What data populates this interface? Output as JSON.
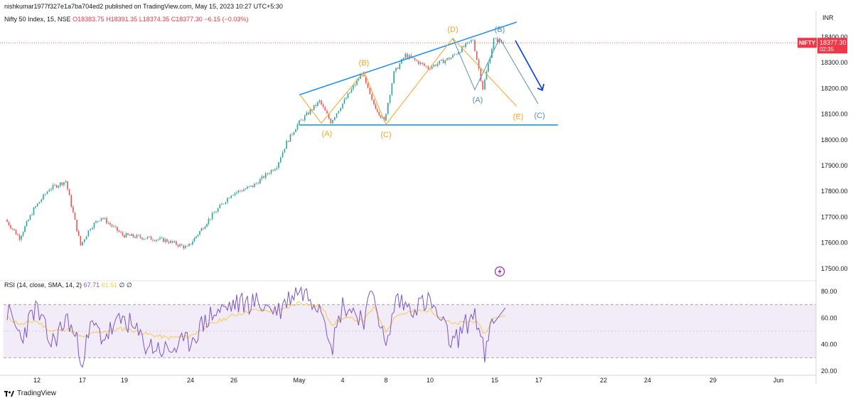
{
  "header": {
    "publish_line": "nishkumar1977f327e1a7ba704ed2 published on TradingView.com, May 15, 2023 10:27 UTC+5:30",
    "symbol": "Nifty 50 Index, 15, NSE",
    "open": "O18383.75",
    "high": "H18391.35",
    "low": "L18374.35",
    "close": "C18377.30",
    "change": "−6.15 (−0.03%)"
  },
  "price_badge": {
    "symbol": "NIFTY",
    "price": "18377.30",
    "countdown": "02:35"
  },
  "rsi_legend": {
    "label": "RSI (14, close, SMA, 14, 2)",
    "rsi_value": "67.71",
    "sma_value": "61.51",
    "extra": "∅ ∅"
  },
  "footer": {
    "brand": "TradingView"
  },
  "colors": {
    "up": "#26a69a",
    "down": "#ef5350",
    "trend_line": "#2196f3",
    "wave_orange": "#f5a623",
    "wave_blue": "#5a8fb8",
    "rsi_line": "#7e57c2",
    "rsi_sma": "#f7c948",
    "arrow": "#1848e0"
  },
  "chart_data": [
    {
      "type": "candlestick",
      "title": "Nifty 50 Index, 15, NSE",
      "unit": "INR",
      "ylim": [
        17450,
        18450
      ],
      "y_ticks": [
        "18400.00",
        "18300.00",
        "18200.00",
        "18100.00",
        "18000.00",
        "17900.00",
        "17800.00",
        "17700.00",
        "17600.00",
        "17500.00"
      ],
      "x_ticks": [
        "12",
        "17",
        "19",
        "24",
        "26",
        "May",
        "4",
        "8",
        "10",
        "15",
        "17",
        "22",
        "24",
        "29",
        "Jun"
      ],
      "last_price": 18377.3,
      "price_path": [
        [
          "10 Apr",
          17690
        ],
        [
          "11 Apr",
          17620
        ],
        [
          "12 Apr",
          17730
        ],
        [
          "13 Apr",
          17810
        ],
        [
          "14 Apr",
          17840
        ],
        [
          "17 Apr",
          17590
        ],
        [
          "17 Apr",
          17660
        ],
        [
          "18 Apr",
          17700
        ],
        [
          "19 Apr",
          17630
        ],
        [
          "20 Apr",
          17620
        ],
        [
          "21 Apr",
          17610
        ],
        [
          "24 Apr",
          17580
        ],
        [
          "25 Apr",
          17690
        ],
        [
          "26 Apr",
          17790
        ],
        [
          "27 Apr",
          17820
        ],
        [
          "28 Apr",
          17900
        ],
        [
          "28 Apr",
          17990
        ],
        [
          "1 May",
          18060
        ],
        [
          "2 May",
          18150
        ],
        [
          "3 May",
          18070
        ],
        [
          "4 May",
          18130
        ],
        [
          "5 May",
          18260
        ],
        [
          "5 May",
          18150
        ],
        [
          "8 May",
          18070
        ],
        [
          "8 May",
          18260
        ],
        [
          "9 May",
          18330
        ],
        [
          "10 May",
          18280
        ],
        [
          "11 May",
          18320
        ],
        [
          "12 May",
          18390
        ],
        [
          "12 May",
          18200
        ],
        [
          "15 May",
          18390
        ],
        [
          "15 May",
          18377
        ]
      ],
      "annotations": {
        "trend_lines": [
          {
            "from": [
              "1 May",
              18175
            ],
            "to": [
              "16 May",
              18458
            ]
          },
          {
            "from": [
              "1 May",
              18058
            ],
            "to": [
              "19 May",
              18058
            ]
          }
        ],
        "orange_wave": [
          {
            "label": "(A)",
            "x": "2 May",
            "y": 18065
          },
          {
            "label": "(B)",
            "x": "5 May",
            "y": 18265
          },
          {
            "label": "(C)",
            "x": "8 May",
            "y": 18060
          },
          {
            "label": "(D)",
            "x": "11 May",
            "y": 18395
          },
          {
            "label": "(E)",
            "x": "16 May",
            "y": 18130
          }
        ],
        "blue_wave": [
          {
            "label": "(A)",
            "x": "12 May",
            "y": 18195
          },
          {
            "label": "(B)",
            "x": "15 May",
            "y": 18395
          },
          {
            "label": "(C)",
            "x": "17 May",
            "y": 18140
          }
        ]
      }
    },
    {
      "type": "line",
      "title": "RSI (14, close, SMA, 14, 2)",
      "ylim": [
        20,
        85
      ],
      "y_ticks": [
        "80.00",
        "60.00",
        "40.00",
        "20.00"
      ],
      "bands": [
        70,
        30
      ],
      "series": [
        {
          "name": "RSI",
          "values": [
            65,
            45,
            68,
            40,
            60,
            30,
            55,
            45,
            60,
            40,
            35,
            42,
            62,
            70,
            72,
            65,
            75,
            82,
            70,
            40,
            70,
            60,
            80,
            35,
            75,
            68,
            72,
            40,
            65,
            30,
            67.71
          ]
        },
        {
          "name": "SMA",
          "values": [
            60,
            55,
            58,
            50,
            52,
            45,
            48,
            50,
            52,
            48,
            45,
            46,
            55,
            62,
            66,
            65,
            68,
            72,
            68,
            55,
            60,
            58,
            68,
            50,
            62,
            64,
            66,
            55,
            58,
            48,
            61.51
          ]
        }
      ]
    }
  ]
}
